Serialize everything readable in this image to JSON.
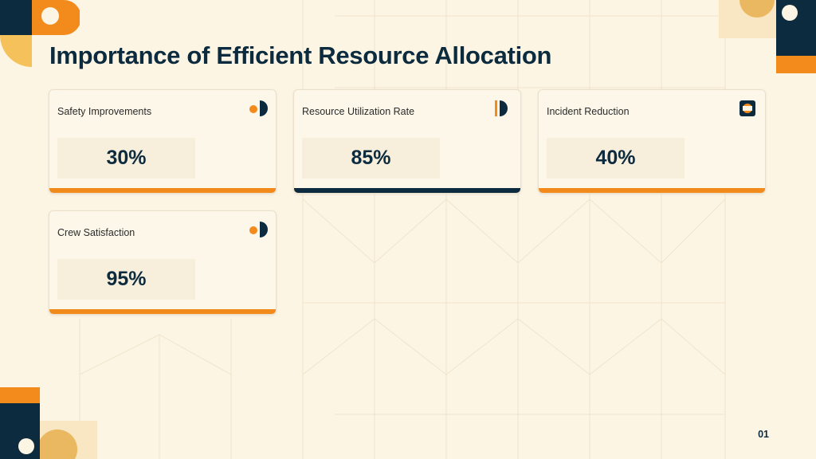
{
  "title": "Importance of Efficient Resource Allocation",
  "colors": {
    "accent_orange": "#f28a1c",
    "navy": "#0d2b3e",
    "gold": "#f5c15a"
  },
  "cards": [
    {
      "label": "Safety Improvements",
      "value": "30%",
      "icon": "half-circle-dot-icon",
      "bar_color": "orange"
    },
    {
      "label": "Resource Utilization Rate",
      "value": "85%",
      "icon": "bar-half-circle-icon",
      "bar_color": "navy"
    },
    {
      "label": "Incident Reduction",
      "value": "40%",
      "icon": "ring-square-icon",
      "bar_color": "orange"
    },
    {
      "label": "Crew Satisfaction",
      "value": "95%",
      "icon": "half-circle-dot-icon",
      "bar_color": "orange"
    }
  ],
  "page_number": "01"
}
